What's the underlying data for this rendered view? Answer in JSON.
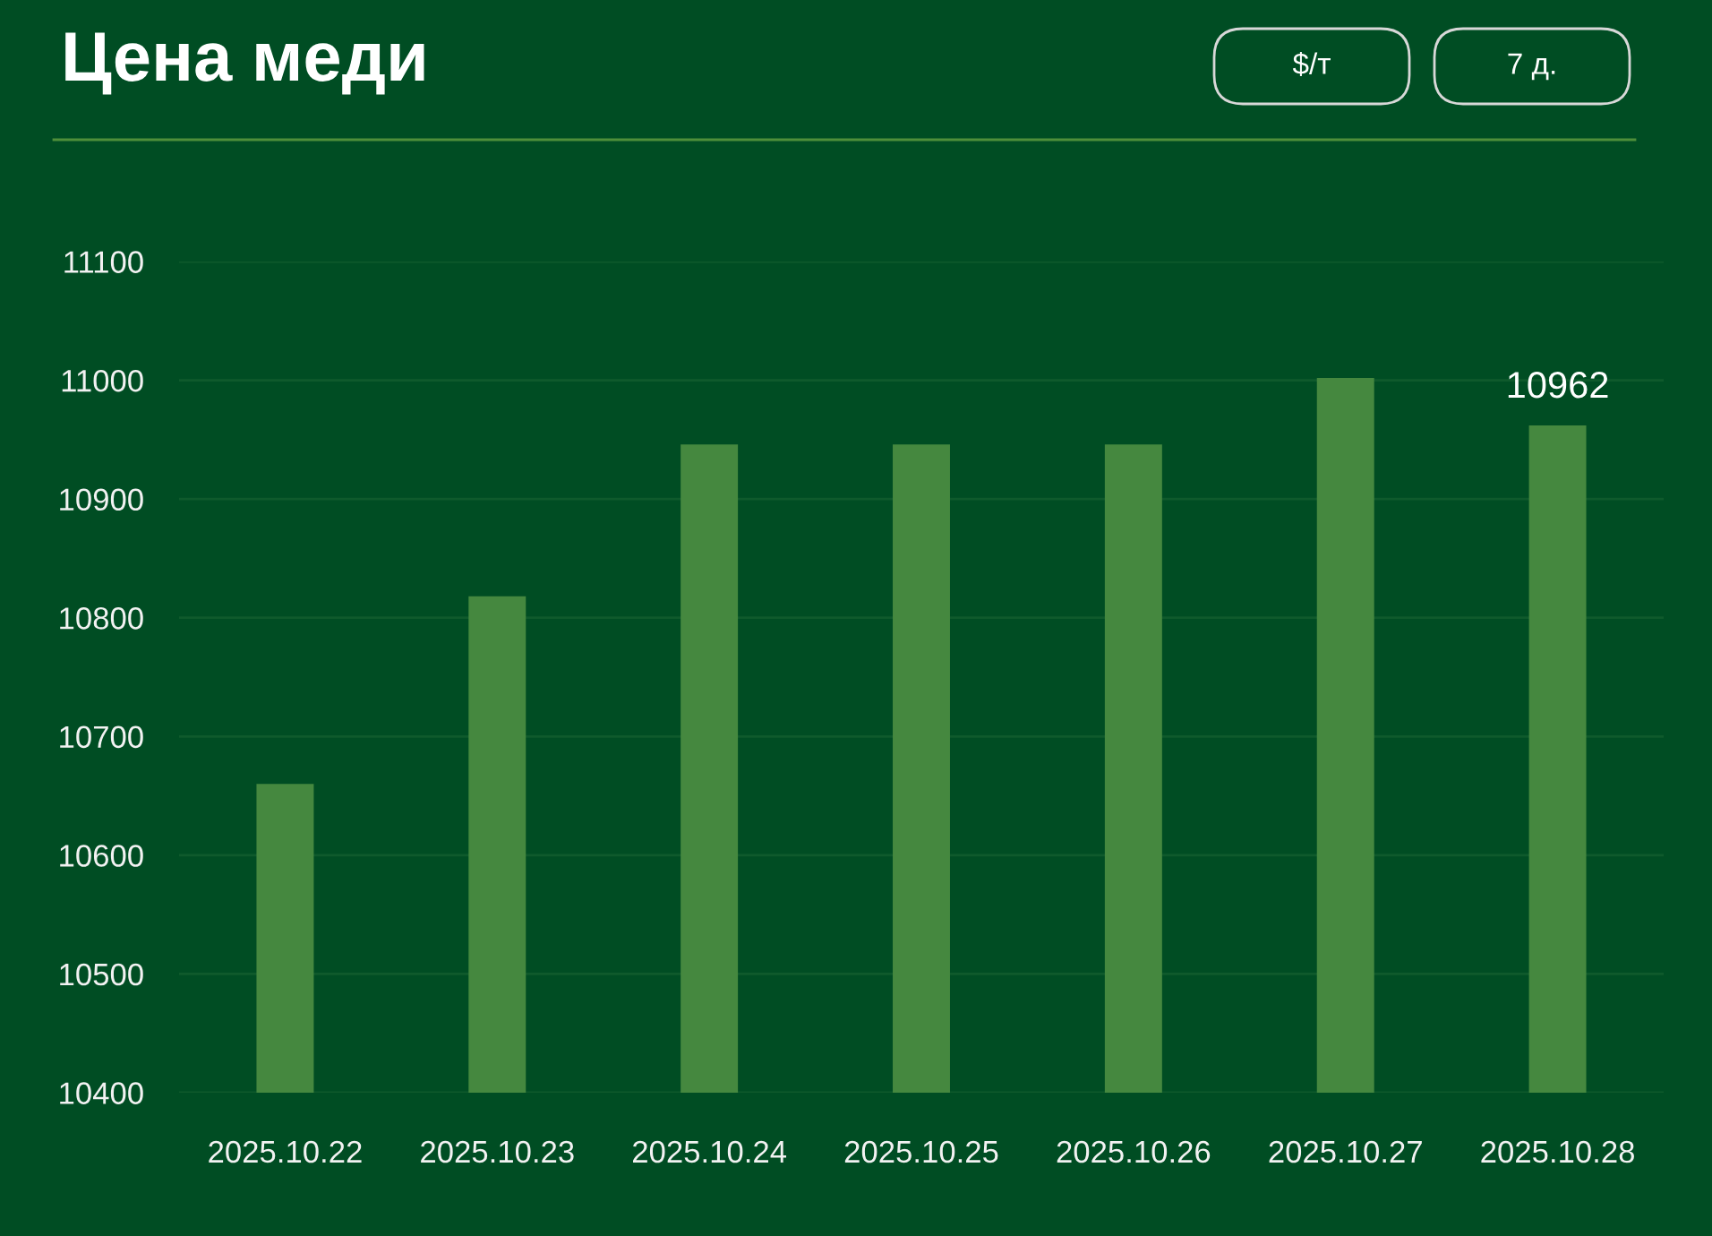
{
  "chart_data": {
    "type": "bar",
    "title": "Цена меди",
    "annotations": [
      "$/т",
      "7 д."
    ],
    "categories": [
      "2025.10.22",
      "2025.10.23",
      "2025.10.24",
      "2025.10.25",
      "2025.10.26",
      "2025.10.27",
      "2025.10.28"
    ],
    "values": [
      10660,
      10818,
      10946,
      10946,
      10946,
      11002,
      10962
    ],
    "value_labels": [
      null,
      null,
      null,
      null,
      null,
      null,
      "10962"
    ],
    "color": "#45883f",
    "ylim": [
      10400,
      11100
    ],
    "yticks": [
      10400,
      10500,
      10600,
      10700,
      10800,
      10900,
      11000,
      11100
    ],
    "grid": "y"
  }
}
